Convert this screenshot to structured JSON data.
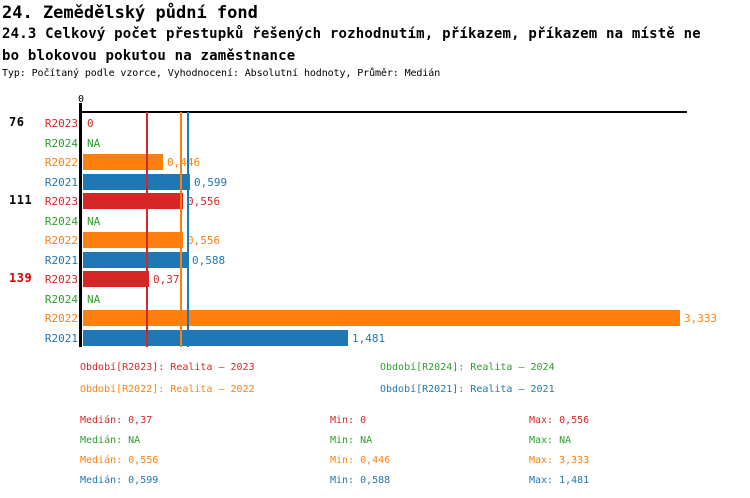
{
  "header": {
    "title": "24. Zemědělský půdní fond",
    "subtitle_line1": "24.3 Celkový počet přestupků řešených rozhodnutím, příkazem, příkazem na místě ne",
    "subtitle_line2": "bo blokovou pokutou na zaměstnance",
    "meta": "Typ: Počítaný podle vzorce, Vyhodnocení: Absolutní hodnoty, Průměr: Medián"
  },
  "colors": {
    "r2023": "#d62728",
    "r2024": "#2ca02c",
    "r2022": "#ff7f0e",
    "r2021": "#1f77b4",
    "highlight_group": "#e00000",
    "normal_group": "#000000",
    "axis": "#000000"
  },
  "chart_data": {
    "type": "bar",
    "orientation": "horizontal",
    "title": "24.3 Celkový počet přestupků řešených rozhodnutím, příkazem, příkazem na místě nebo blokovou pokutou na zaměstnance",
    "axis": {
      "zero_tick_label": "0",
      "xlim": [
        0,
        3.38
      ],
      "gridlines": false
    },
    "series_order": [
      "R2023",
      "R2024",
      "R2022",
      "R2021"
    ],
    "groups": [
      {
        "label": "76",
        "highlighted": false,
        "bars": [
          {
            "series": "R2023",
            "value": 0,
            "display": "0"
          },
          {
            "series": "R2024",
            "value": null,
            "display": "NA"
          },
          {
            "series": "R2022",
            "value": 0.446,
            "display": "0,446"
          },
          {
            "series": "R2021",
            "value": 0.599,
            "display": "0,599"
          }
        ]
      },
      {
        "label": "111",
        "highlighted": false,
        "bars": [
          {
            "series": "R2023",
            "value": 0.556,
            "display": "0,556"
          },
          {
            "series": "R2024",
            "value": null,
            "display": "NA"
          },
          {
            "series": "R2022",
            "value": 0.556,
            "display": "0,556"
          },
          {
            "series": "R2021",
            "value": 0.588,
            "display": "0,588"
          }
        ]
      },
      {
        "label": "139",
        "highlighted": true,
        "bars": [
          {
            "series": "R2023",
            "value": 0.37,
            "display": "0,37"
          },
          {
            "series": "R2024",
            "value": null,
            "display": "NA"
          },
          {
            "series": "R2022",
            "value": 3.333,
            "display": "3,333"
          },
          {
            "series": "R2021",
            "value": 1.481,
            "display": "1,481"
          }
        ]
      }
    ],
    "median_lines": [
      {
        "series": "R2023",
        "value": 0.37
      },
      {
        "series": "R2022",
        "value": 0.556
      },
      {
        "series": "R2021",
        "value": 0.599
      }
    ]
  },
  "legend": {
    "items": [
      {
        "series": "R2023",
        "label": "Období[R2023]: Realita – 2023"
      },
      {
        "series": "R2024",
        "label": "Období[R2024]: Realita – 2024"
      },
      {
        "series": "R2022",
        "label": "Období[R2022]: Realita – 2022"
      },
      {
        "series": "R2021",
        "label": "Období[R2021]: Realita – 2021"
      }
    ]
  },
  "stats": {
    "labels": {
      "median": "Medián",
      "min": "Min",
      "max": "Max"
    },
    "rows": [
      {
        "series": "R2023",
        "median": "0,37",
        "min": "0",
        "max": "0,556"
      },
      {
        "series": "R2024",
        "median": "NA",
        "min": "NA",
        "max": "NA"
      },
      {
        "series": "R2022",
        "median": "0,556",
        "min": "0,446",
        "max": "3,333"
      },
      {
        "series": "R2021",
        "median": "0,599",
        "min": "0,588",
        "max": "1,481"
      }
    ]
  }
}
